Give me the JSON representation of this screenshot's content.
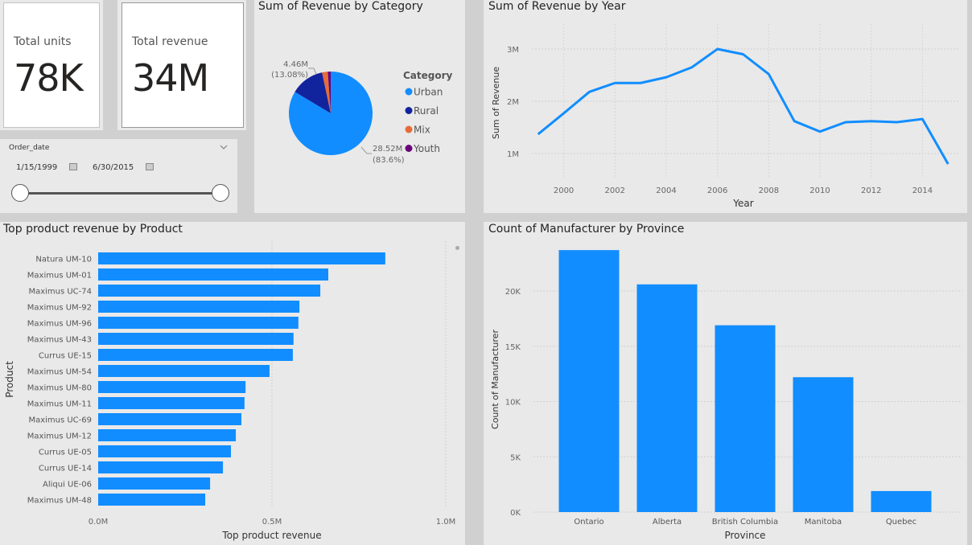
{
  "cards": {
    "units": {
      "label": "Total units",
      "value": "78K"
    },
    "revenue": {
      "label": "Total revenue",
      "value": "34M"
    }
  },
  "slicer": {
    "title": "Order_date",
    "start_date": "1/15/1999",
    "end_date": "6/30/2015",
    "expand_icon": "chevron-down-icon",
    "calendar_icon": "calendar-icon"
  },
  "chart_data": [
    {
      "id": "pie",
      "type": "pie",
      "title": "Sum of Revenue by Category",
      "legend_title": "Category",
      "legend_position": "right",
      "slices": [
        {
          "name": "Urban",
          "value": 28.52,
          "pct": 83.6,
          "color": "#118DFF",
          "label": "28.52M",
          "pct_label": "(83.6%)"
        },
        {
          "name": "Rural",
          "value": 4.46,
          "pct": 13.08,
          "color": "#12239E",
          "label": "4.46M",
          "pct_label": "(13.08%)"
        },
        {
          "name": "Mix",
          "value": 0.75,
          "pct": 2.2,
          "color": "#E66C37",
          "label": "",
          "pct_label": ""
        },
        {
          "name": "Youth",
          "value": 0.38,
          "pct": 1.12,
          "color": "#6B007B",
          "label": "",
          "pct_label": ""
        }
      ]
    },
    {
      "id": "line",
      "type": "line",
      "title": "Sum of Revenue by Year",
      "xlabel": "Year",
      "ylabel": "Sum of Revenue",
      "x": [
        1999,
        2000,
        2001,
        2002,
        2003,
        2004,
        2005,
        2006,
        2007,
        2008,
        2009,
        2010,
        2011,
        2012,
        2013,
        2014,
        2015
      ],
      "values": [
        1.37,
        1.77,
        2.18,
        2.35,
        2.35,
        2.46,
        2.65,
        3.0,
        2.9,
        2.52,
        1.62,
        1.42,
        1.6,
        1.62,
        1.6,
        1.66,
        0.8
      ],
      "units": "M",
      "yticks": [
        {
          "v": 1,
          "label": "1M"
        },
        {
          "v": 2,
          "label": "2M"
        },
        {
          "v": 3,
          "label": "3M"
        }
      ],
      "xticks": [
        2000,
        2002,
        2004,
        2006,
        2008,
        2010,
        2012,
        2014
      ],
      "ylim": [
        0.5,
        3.4
      ],
      "xlim": [
        1998.6,
        2015.4
      ],
      "color": "#118DFF",
      "grid": true
    },
    {
      "id": "hbar",
      "type": "bar",
      "orientation": "horizontal",
      "title": "Top product revenue by Product",
      "xlabel": "Top product revenue",
      "ylabel": "Product",
      "categories": [
        "Natura UM-10",
        "Maximus UM-01",
        "Maximus UC-74",
        "Maximus UM-92",
        "Maximus UM-96",
        "Maximus UM-43",
        "Currus UE-15",
        "Maximus UM-54",
        "Maximus UM-80",
        "Maximus UM-11",
        "Maximus UC-69",
        "Maximus UM-12",
        "Currus UE-05",
        "Currus UE-14",
        "Aliqui UE-06",
        "Maximus UM-48"
      ],
      "values": [
        0.826,
        0.662,
        0.639,
        0.579,
        0.576,
        0.562,
        0.56,
        0.493,
        0.424,
        0.421,
        0.412,
        0.396,
        0.382,
        0.359,
        0.322,
        0.308
      ],
      "units": "M",
      "xticks": [
        {
          "v": 0,
          "label": "0.0M"
        },
        {
          "v": 0.5,
          "label": "0.5M"
        },
        {
          "v": 1.0,
          "label": "1.0M"
        }
      ],
      "xlim": [
        0,
        1.0
      ],
      "color": "#118DFF",
      "grid": true
    },
    {
      "id": "vbar",
      "type": "bar",
      "orientation": "vertical",
      "title": "Count of Manufacturer by Province",
      "xlabel": "Province",
      "ylabel": "Count of Manufacturer",
      "categories": [
        "Ontario",
        "Alberta",
        "British Columbia",
        "Manitoba",
        "Quebec"
      ],
      "values": [
        23700,
        20600,
        16900,
        12200,
        1900
      ],
      "yticks": [
        {
          "v": 0,
          "label": "0K"
        },
        {
          "v": 5000,
          "label": "5K"
        },
        {
          "v": 10000,
          "label": "10K"
        },
        {
          "v": 15000,
          "label": "15K"
        },
        {
          "v": 20000,
          "label": "20K"
        }
      ],
      "ylim": [
        0,
        25000
      ],
      "color": "#118DFF",
      "grid": true
    }
  ]
}
